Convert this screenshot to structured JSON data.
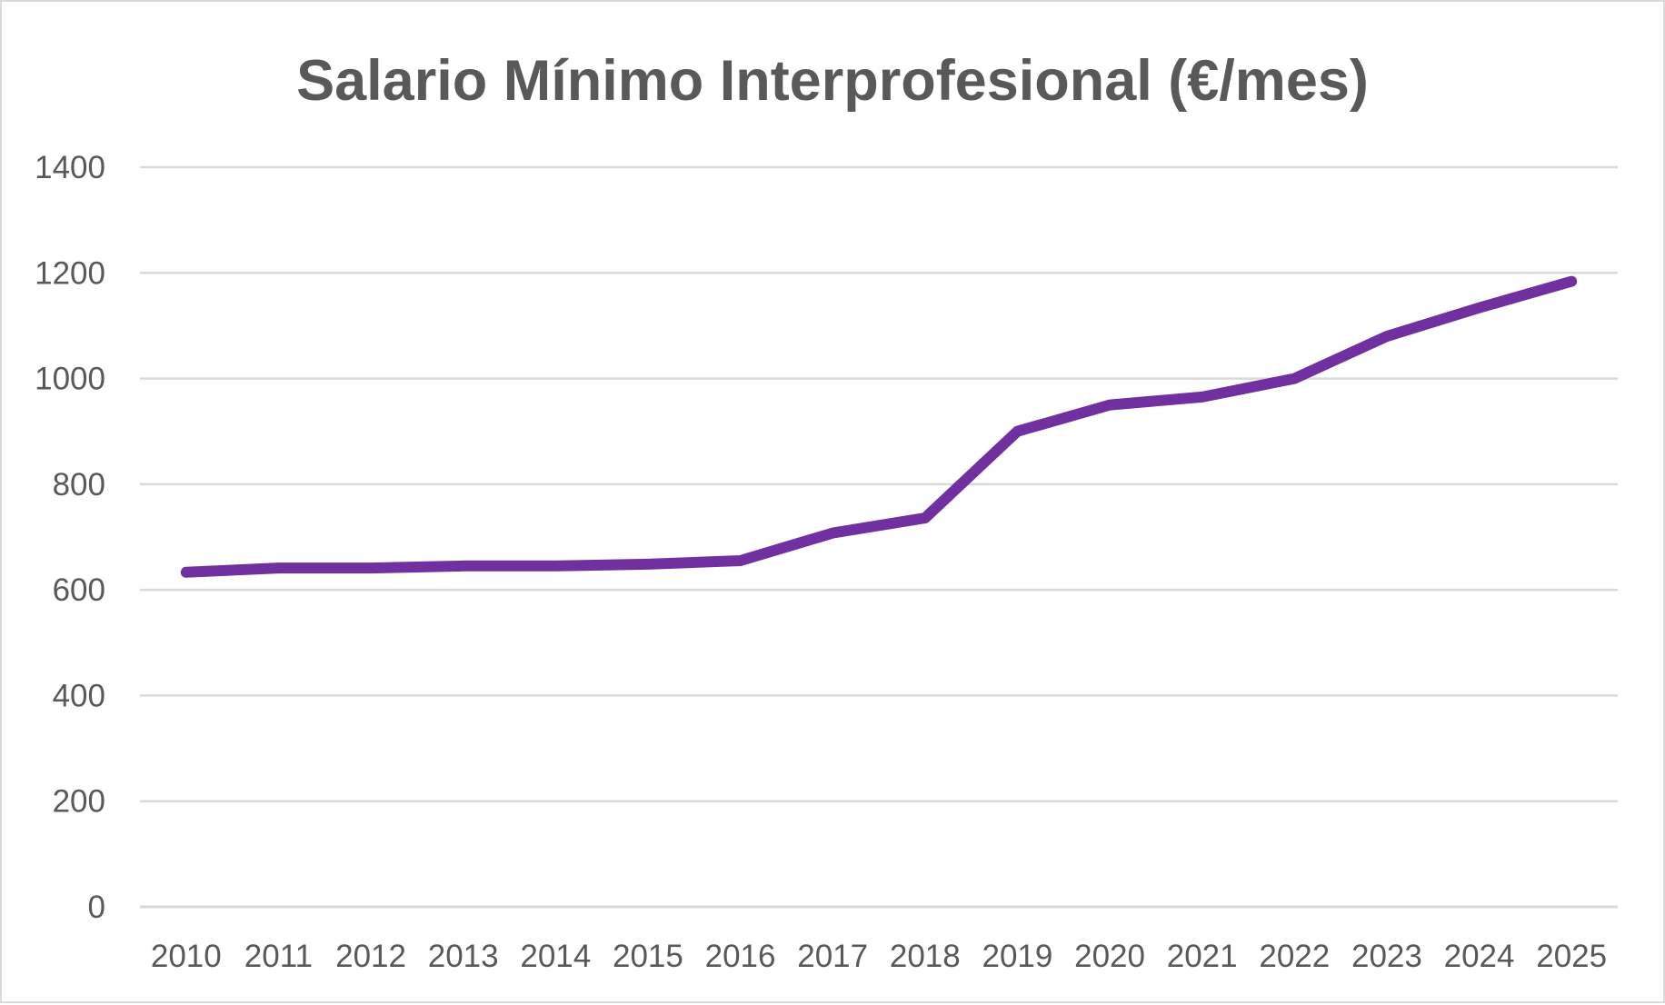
{
  "chart_data": {
    "type": "line",
    "title": "Salario Mínimo Interprofesional (€/mes)",
    "xlabel": "",
    "ylabel": "",
    "categories": [
      "2010",
      "2011",
      "2012",
      "2013",
      "2014",
      "2015",
      "2016",
      "2017",
      "2018",
      "2019",
      "2020",
      "2021",
      "2022",
      "2023",
      "2024",
      "2025"
    ],
    "series": [
      {
        "values": [
          633.3,
          641.4,
          641.4,
          645.3,
          645.3,
          648.6,
          655.2,
          707.6,
          735.9,
          900,
          950,
          965,
          1000,
          1080,
          1134,
          1184
        ],
        "color": "#7030a0"
      }
    ],
    "ylim": [
      0,
      1400
    ],
    "yticks": [
      "0",
      "200",
      "400",
      "600",
      "800",
      "1000",
      "1200",
      "1400"
    ],
    "grid": true,
    "legend": "none"
  }
}
